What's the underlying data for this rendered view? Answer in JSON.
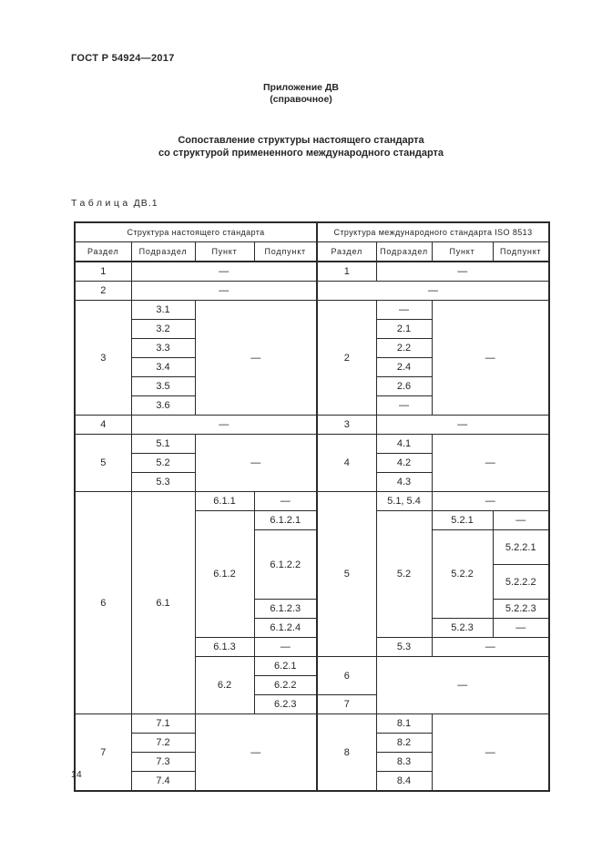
{
  "page": {
    "doc_code": "ГОСТ Р 54924—2017",
    "appendix_title": "Приложение ДВ",
    "appendix_subtitle": "(справочное)",
    "title_line1": "Сопоставление структуры настоящего стандарта",
    "title_line2": "со структурой примененного международного стандарта",
    "table_label_word": "Таблица",
    "table_label_number": "ДВ.1",
    "page_number": "14"
  },
  "table": {
    "group_headers": [
      "Структура настоящего стандарта",
      "Структура международного стандарта ISO 8513"
    ],
    "column_headers": [
      "Раздел",
      "Подраздел",
      "Пункт",
      "Подпункт",
      "Раздел",
      "Подраздел",
      "Пункт",
      "Подпункт"
    ],
    "rows": [
      {
        "cells": [
          {
            "t": "1"
          },
          {
            "t": "—",
            "cs": 3
          },
          {
            "t": "1",
            "m": true
          },
          {
            "t": "—",
            "cs": 3
          }
        ]
      },
      {
        "cells": [
          {
            "t": "2"
          },
          {
            "t": "—",
            "cs": 3
          },
          {
            "t": "—",
            "cs": 4,
            "m": true
          }
        ]
      },
      {
        "cells": [
          {
            "t": "3",
            "rs": 6
          },
          {
            "t": "3.1"
          },
          {
            "t": "—",
            "cs": 2,
            "rs": 6
          },
          {
            "t": "2",
            "rs": 6,
            "m": true
          },
          {
            "t": "—"
          },
          {
            "t": "—",
            "cs": 2,
            "rs": 6
          }
        ]
      },
      {
        "cells": [
          {
            "t": "3.2"
          },
          {
            "t": "2.1"
          }
        ]
      },
      {
        "cells": [
          {
            "t": "3.3"
          },
          {
            "t": "2.2"
          }
        ]
      },
      {
        "cells": [
          {
            "t": "3.4"
          },
          {
            "t": "2.4"
          }
        ]
      },
      {
        "cells": [
          {
            "t": "3.5"
          },
          {
            "t": "2.6"
          }
        ]
      },
      {
        "cells": [
          {
            "t": "3.6"
          },
          {
            "t": "—"
          }
        ]
      },
      {
        "cells": [
          {
            "t": "4"
          },
          {
            "t": "—",
            "cs": 3
          },
          {
            "t": "3",
            "m": true
          },
          {
            "t": "—",
            "cs": 3
          }
        ]
      },
      {
        "cells": [
          {
            "t": "5",
            "rs": 3
          },
          {
            "t": "5.1"
          },
          {
            "t": "—",
            "cs": 2,
            "rs": 3
          },
          {
            "t": "4",
            "rs": 3,
            "m": true
          },
          {
            "t": "4.1"
          },
          {
            "t": "—",
            "cs": 2,
            "rs": 3
          }
        ]
      },
      {
        "cells": [
          {
            "t": "5.2"
          },
          {
            "t": "4.2"
          }
        ]
      },
      {
        "cells": [
          {
            "t": "5.3"
          },
          {
            "t": "4.3"
          }
        ]
      },
      {
        "cells": [
          {
            "t": "6",
            "rs": 10
          },
          {
            "t": "6.1",
            "rs": 10
          },
          {
            "t": "6.1.1"
          },
          {
            "t": "—"
          },
          {
            "t": "5",
            "rs": 7,
            "m": true
          },
          {
            "t": "5.1, 5.4"
          },
          {
            "t": "—",
            "cs": 2
          }
        ]
      },
      {
        "cells": [
          {
            "t": "6.1.2",
            "rs": 5
          },
          {
            "t": "6.1.2.1"
          },
          {
            "t": "5.2",
            "rs": 5
          },
          {
            "t": "5.2.1"
          },
          {
            "t": "—"
          }
        ]
      },
      {
        "tall": true,
        "cells": [
          {
            "t": "6.1.2.2",
            "rs": 2
          },
          {
            "t": "5.2.2",
            "rs": 3
          },
          {
            "t": "5.2.2.1"
          }
        ]
      },
      {
        "tall": true,
        "cells": [
          {
            "t": "5.2.2.2"
          }
        ]
      },
      {
        "cells": [
          {
            "t": "6.1.2.3"
          },
          {
            "t": "5.2.2.3"
          }
        ]
      },
      {
        "cells": [
          {
            "t": "6.1.2.4"
          },
          {
            "t": "5.2.3"
          },
          {
            "t": "—"
          }
        ]
      },
      {
        "cells": [
          {
            "t": "6.1.3"
          },
          {
            "t": "—"
          },
          {
            "t": "5.3"
          },
          {
            "t": "—",
            "cs": 2
          }
        ]
      },
      {
        "cells": [
          {
            "t": "6.2",
            "rs": 3
          },
          {
            "t": "6.2.1"
          },
          {
            "t": "6",
            "rs": 2,
            "m": true
          },
          {
            "t": "—",
            "cs": 3,
            "rs": 3
          }
        ]
      },
      {
        "cells": [
          {
            "t": "6.2.2"
          }
        ]
      },
      {
        "cells": [
          {
            "t": "6.2.3"
          },
          {
            "t": "7",
            "m": true
          }
        ]
      },
      {
        "cells": [
          {
            "t": "7",
            "rs": 4
          },
          {
            "t": "7.1"
          },
          {
            "t": "—",
            "cs": 2,
            "rs": 4
          },
          {
            "t": "8",
            "rs": 4,
            "m": true
          },
          {
            "t": "8.1"
          },
          {
            "t": "—",
            "cs": 2,
            "rs": 4
          }
        ]
      },
      {
        "cells": [
          {
            "t": "7.2"
          },
          {
            "t": "8.2"
          }
        ]
      },
      {
        "cells": [
          {
            "t": "7.3"
          },
          {
            "t": "8.3"
          }
        ]
      },
      {
        "cells": [
          {
            "t": "7.4"
          },
          {
            "t": "8.4"
          }
        ]
      }
    ]
  }
}
